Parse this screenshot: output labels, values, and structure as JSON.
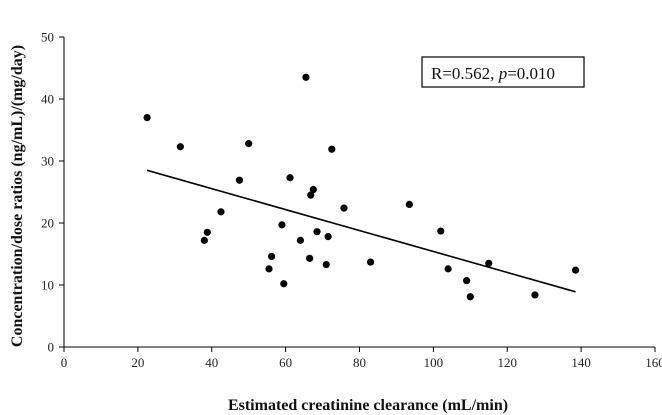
{
  "chart_data": {
    "type": "scatter",
    "title": "",
    "xlabel": "Estimated creatinine clearance (mL/min)",
    "ylabel": "Concentration/dose ratios (ng/mL)/(mg/day)",
    "xlim": [
      0,
      160
    ],
    "ylim": [
      0,
      50
    ],
    "x_ticks": [
      0,
      20,
      40,
      60,
      80,
      100,
      120,
      140,
      160
    ],
    "y_ticks": [
      0,
      10,
      20,
      30,
      40,
      50
    ],
    "grid": false,
    "legend": "none",
    "marker_color": "#000000",
    "series": [
      {
        "points": [
          [
            22.5,
            37.0
          ],
          [
            31.5,
            32.3
          ],
          [
            38.0,
            17.2
          ],
          [
            38.8,
            18.5
          ],
          [
            42.5,
            21.8
          ],
          [
            47.5,
            26.9
          ],
          [
            50.0,
            32.8
          ],
          [
            55.5,
            12.6
          ],
          [
            56.2,
            14.6
          ],
          [
            59.0,
            19.7
          ],
          [
            59.5,
            10.2
          ],
          [
            61.2,
            27.3
          ],
          [
            64.0,
            17.2
          ],
          [
            65.5,
            43.5
          ],
          [
            66.5,
            14.3
          ],
          [
            66.8,
            24.5
          ],
          [
            67.5,
            25.4
          ],
          [
            68.5,
            18.6
          ],
          [
            71.0,
            13.3
          ],
          [
            71.5,
            17.8
          ],
          [
            72.5,
            31.9
          ],
          [
            75.8,
            22.4
          ],
          [
            83.0,
            13.7
          ],
          [
            93.5,
            23.0
          ],
          [
            102.0,
            18.7
          ],
          [
            104.0,
            12.6
          ],
          [
            109.0,
            10.7
          ],
          [
            110.0,
            8.1
          ],
          [
            115.0,
            13.5
          ],
          [
            127.5,
            8.4
          ],
          [
            138.5,
            12.4
          ]
        ]
      }
    ],
    "trendline": {
      "x": [
        22.5,
        138.5
      ],
      "y": [
        28.5,
        8.9
      ]
    },
    "annotation": {
      "R": "R=0.562, ",
      "p_label": "p",
      "p_value": "=0.010"
    }
  }
}
